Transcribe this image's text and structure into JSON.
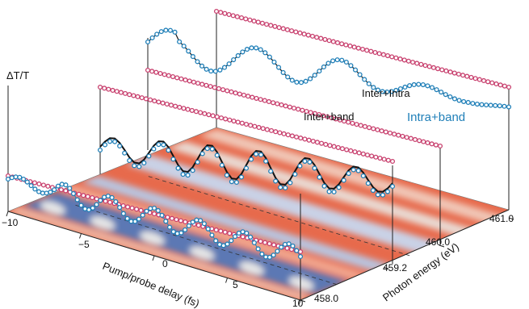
{
  "chart_data": {
    "type": "line",
    "ylabel": "ΔT/T",
    "xlabel": "Pump/probe delay (fs)",
    "zlabel": "Photon energy (eV)",
    "x_ticks": [
      "−10",
      "−5",
      "0",
      "5",
      "10"
    ],
    "z_ticks": [
      "458.0",
      "459.2",
      "460.0",
      "461.0"
    ],
    "xlim": [
      -10,
      10
    ],
    "zlim": [
      458.0,
      461.0
    ],
    "slices": [
      {
        "energy": 458.0,
        "label": ""
      },
      {
        "energy": 459.2,
        "label": "Inter+band"
      },
      {
        "energy": 460.0,
        "label": ""
      },
      {
        "energy": 461.0,
        "label": ""
      }
    ],
    "series": [
      {
        "name": "Inter+Intra",
        "color": "#111111",
        "style": "solid line (model)"
      },
      {
        "name": "Intra+band",
        "color": "#1f7fb8",
        "style": "circles with line"
      },
      {
        "name": "",
        "color": "#c8406e",
        "style": "circles (flat)"
      }
    ],
    "colors": {
      "heat_warm": "#e0664a",
      "heat_cool": "#5b78b4",
      "heat_mid": "#e6e6e6"
    }
  }
}
